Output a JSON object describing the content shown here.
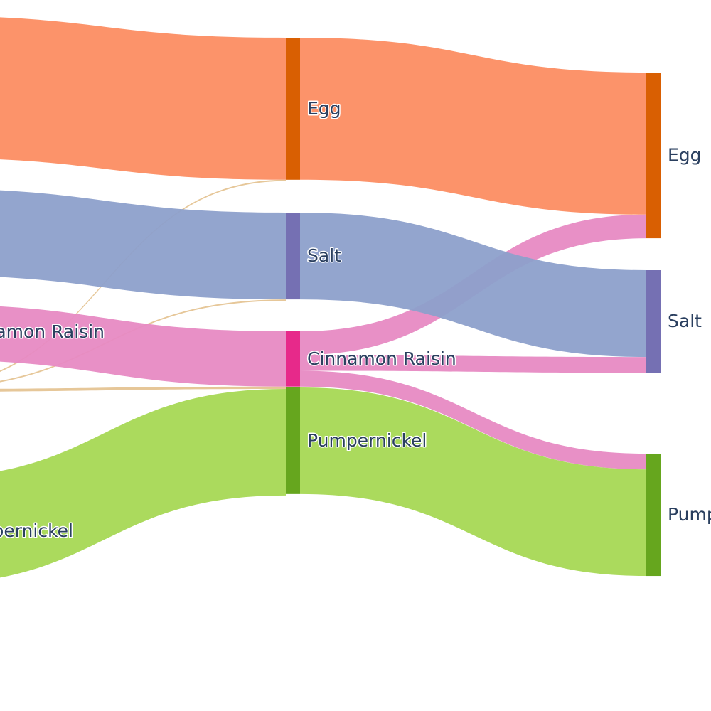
{
  "chart_data": {
    "type": "sankey",
    "title": "",
    "columns": [
      {
        "name": "",
        "nodes": [
          {
            "label": "",
            "value": 18,
            "color": "#fc8d62"
          },
          {
            "label": "",
            "value": 11,
            "color": "#8da0cb"
          },
          {
            "label": "Cinnamon Raisin",
            "value": 7,
            "color": "#e78ac3"
          },
          {
            "label": "",
            "value": 0.5,
            "color": "#e5c494"
          },
          {
            "label": "Pumpernickel",
            "value": 13.5,
            "color": "#a6d854"
          }
        ]
      },
      {
        "name": "",
        "nodes": [
          {
            "label": "Egg",
            "value": 18,
            "color": "#d95f02"
          },
          {
            "label": "Salt",
            "value": 11,
            "color": "#7570b3"
          },
          {
            "label": "Cinnamon Raisin",
            "value": 7,
            "color": "#e7298a"
          },
          {
            "label": "Pumpernickel",
            "value": 13.5,
            "color": "#66a61e"
          }
        ]
      },
      {
        "name": "",
        "nodes": [
          {
            "label": "Egg",
            "value": 21,
            "color": "#d95f02"
          },
          {
            "label": "Salt",
            "value": 13,
            "color": "#7570b3"
          },
          {
            "label": "Pumpernickel",
            "value": 15.5,
            "color": "#66a61e"
          }
        ]
      }
    ],
    "links": [
      {
        "source": [
          0,
          0
        ],
        "target": [
          1,
          0
        ],
        "value": 18,
        "color": "#fc8d62"
      },
      {
        "source": [
          0,
          3
        ],
        "target": [
          1,
          0
        ],
        "value": 0.15,
        "color": "#e5c494"
      },
      {
        "source": [
          0,
          1
        ],
        "target": [
          1,
          1
        ],
        "value": 11,
        "color": "#8da0cb"
      },
      {
        "source": [
          0,
          3
        ],
        "target": [
          1,
          1
        ],
        "value": 0.15,
        "color": "#e5c494"
      },
      {
        "source": [
          0,
          2
        ],
        "target": [
          1,
          2
        ],
        "value": 7,
        "color": "#e78ac3"
      },
      {
        "source": [
          0,
          3
        ],
        "target": [
          1,
          2
        ],
        "value": 0.15,
        "color": "#e5c494"
      },
      {
        "source": [
          0,
          3
        ],
        "target": [
          1,
          3
        ],
        "value": 0.15,
        "color": "#e5c494"
      },
      {
        "source": [
          0,
          4
        ],
        "target": [
          1,
          3
        ],
        "value": 13.5,
        "color": "#a6d854"
      },
      {
        "source": [
          1,
          0
        ],
        "target": [
          2,
          0
        ],
        "value": 18,
        "color": "#fc8d62"
      },
      {
        "source": [
          1,
          2
        ],
        "target": [
          2,
          0
        ],
        "value": 3,
        "color": "#e78ac3"
      },
      {
        "source": [
          1,
          1
        ],
        "target": [
          2,
          1
        ],
        "value": 11,
        "color": "#8da0cb"
      },
      {
        "source": [
          1,
          2
        ],
        "target": [
          2,
          1
        ],
        "value": 2,
        "color": "#e78ac3"
      },
      {
        "source": [
          1,
          2
        ],
        "target": [
          2,
          2
        ],
        "value": 2,
        "color": "#e78ac3"
      },
      {
        "source": [
          1,
          3
        ],
        "target": [
          2,
          2
        ],
        "value": 13.5,
        "color": "#a6d854"
      }
    ]
  }
}
